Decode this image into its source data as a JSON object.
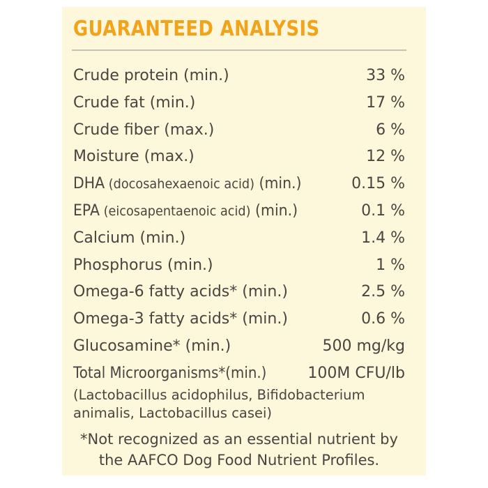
{
  "title": "GUARANTEED ANALYSIS",
  "colors": {
    "title": "#f2a31c",
    "background": "#fdf7db",
    "text": "#4a4440",
    "rule": "#c8c0b4"
  },
  "rows": [
    {
      "label": "Crude protein (min.)",
      "sub": "",
      "suffix": "",
      "value": "33 %"
    },
    {
      "label": "Crude fat (min.)",
      "sub": "",
      "suffix": "",
      "value": "17 %"
    },
    {
      "label": "Crude fiber (max.)",
      "sub": "",
      "suffix": "",
      "value": "6 %"
    },
    {
      "label": "Moisture (max.)",
      "sub": "",
      "suffix": "",
      "value": "12 %"
    },
    {
      "label": "DHA",
      "sub": " (docosahexaenoic acid)",
      "suffix": " (min.)",
      "value": "0.15 %"
    },
    {
      "label": "EPA",
      "sub": " (eicosapentaenoic acid)",
      "suffix": " (min.)",
      "value": "0.1 %"
    },
    {
      "label": "Calcium (min.)",
      "sub": "",
      "suffix": "",
      "value": "1.4 %"
    },
    {
      "label": "Phosphorus (min.)",
      "sub": "",
      "suffix": "",
      "value": "1 %"
    },
    {
      "label": "Omega-6 fatty acids* (min.)",
      "sub": "",
      "suffix": "",
      "value": "2.5 %"
    },
    {
      "label": "Omega-3 fatty acids* (min.)",
      "sub": "",
      "suffix": "",
      "value": "0.6 %"
    },
    {
      "label": "Glucosamine* (min.)",
      "sub": "",
      "suffix": "",
      "value": "500 mg/kg"
    },
    {
      "label": "Total Microorganisms*(min.)",
      "sub": "",
      "suffix": "",
      "value": "100M CFU/lb"
    }
  ],
  "microorganisms_note": {
    "line1": "(Lactobacillus acidophilus, Bifidobacterium",
    "line2": "animalis, Lactobacillus casei)"
  },
  "footnote": {
    "line1": "*Not recognized as an essential nutrient by",
    "line2": "the AAFCO Dog Food Nutrient Profiles."
  }
}
